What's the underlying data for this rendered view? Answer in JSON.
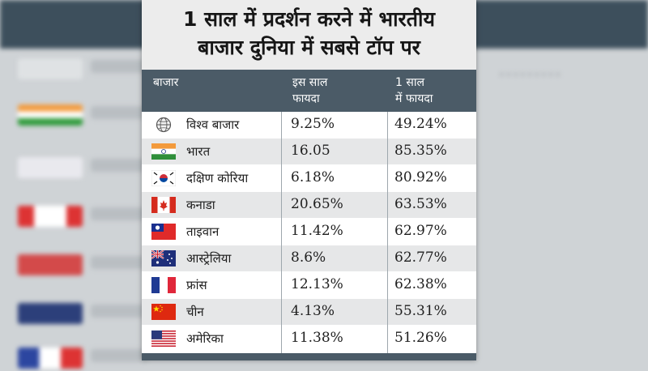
{
  "title": {
    "line1": "1 साल में प्रदर्शन करने में भारतीय",
    "line2": "बाजार दुनिया में सबसे टॉप पर"
  },
  "headers": {
    "market": "बाजार",
    "this_year_line1": "इस साल",
    "this_year_line2": "फायदा",
    "one_year_line1": "1 साल",
    "one_year_line2": "में फायदा"
  },
  "rows": [
    {
      "name": "विश्व बाजार",
      "flag": "globe-icon",
      "this_year": "9.25%",
      "one_year": "49.24%"
    },
    {
      "name": "भारत",
      "flag": "india-flag-icon",
      "this_year": "16.05",
      "one_year": "85.35%"
    },
    {
      "name": "दक्षिण कोरिया",
      "flag": "south-korea-flag-icon",
      "this_year": "6.18%",
      "one_year": "80.92%"
    },
    {
      "name": "कनाडा",
      "flag": "canada-flag-icon",
      "this_year": "20.65%",
      "one_year": "63.53%"
    },
    {
      "name": "ताइवान",
      "flag": "taiwan-flag-icon",
      "this_year": "11.42%",
      "one_year": "62.97%"
    },
    {
      "name": "आस्ट्रेलिया",
      "flag": "australia-flag-icon",
      "this_year": "8.6%",
      "one_year": "62.77%"
    },
    {
      "name": "फ्रांस",
      "flag": "france-flag-icon",
      "this_year": "12.13%",
      "one_year": "62.38%"
    },
    {
      "name": "चीन",
      "flag": "china-flag-icon",
      "this_year": "4.13%",
      "one_year": "55.31%"
    },
    {
      "name": "अमेरिका",
      "flag": "usa-flag-icon",
      "this_year": "11.38%",
      "one_year": "51.26%"
    }
  ],
  "colors": {
    "header_bg": "#4b5b67",
    "title_bg": "#ececec",
    "row_alt": "#e6e7e8"
  }
}
